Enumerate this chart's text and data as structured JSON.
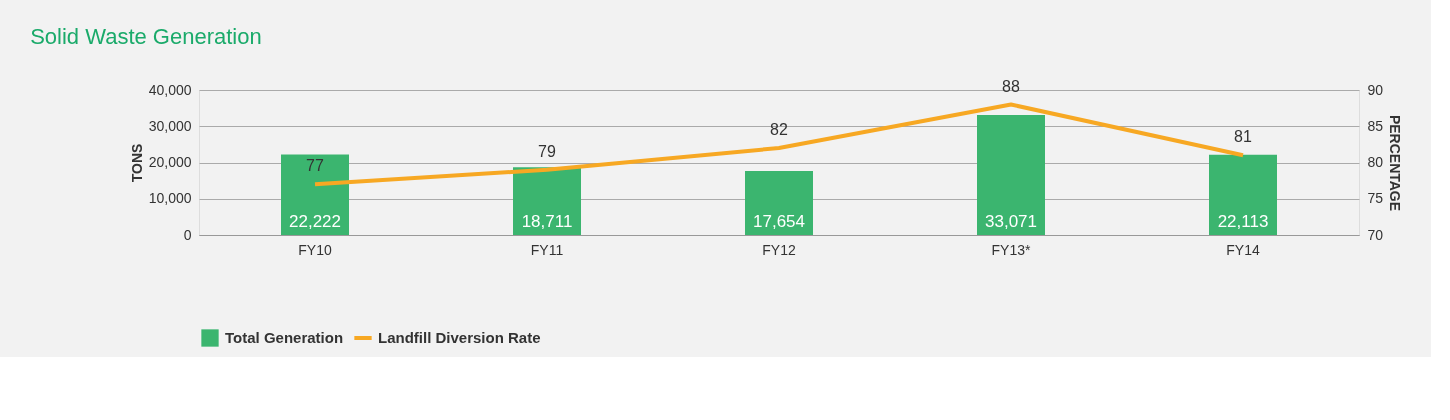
{
  "chart_data": {
    "type": "bar",
    "title": "Solid Waste Generation",
    "categories": [
      "FY10",
      "FY11",
      "FY12",
      "FY13*",
      "FY14"
    ],
    "series": [
      {
        "name": "Total Generation",
        "color": "#3bb56f",
        "values": [
          22222,
          18711,
          17654,
          33071,
          22113
        ],
        "value_labels": [
          "22,222",
          "18,711",
          "17,654",
          "33,071",
          "22,113"
        ]
      },
      {
        "name": "Landfill Diversion Rate",
        "type": "line",
        "axis": "y2",
        "color": "#f7a823",
        "values": [
          77,
          79,
          82,
          88,
          81
        ]
      }
    ],
    "ylabel": "TONS",
    "y2label": "PERCENTAGE",
    "ylim": [
      0,
      40000
    ],
    "yticks": [
      0,
      {
        "value": 10000,
        "label": "10,000"
      },
      {
        "value": 20000,
        "label": "20,000"
      },
      {
        "value": 30000,
        "label": "30,000"
      },
      {
        "value": 40000,
        "label": "40,000"
      }
    ],
    "y2lim": [
      70,
      90
    ],
    "y2ticks": [
      70,
      75,
      80,
      85,
      90
    ],
    "grid": "y",
    "legend": "bottom",
    "data_labels": true
  }
}
